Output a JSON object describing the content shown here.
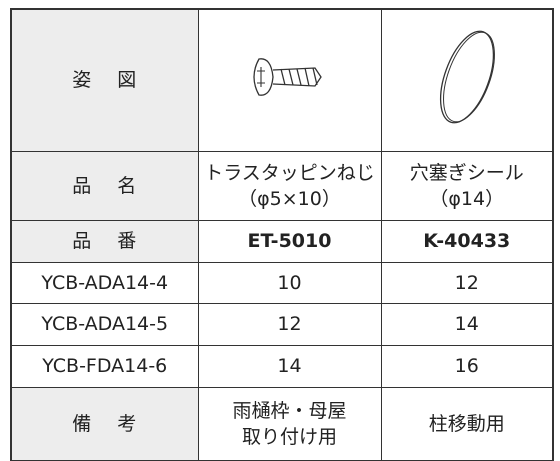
{
  "table": {
    "rows": [
      {
        "label": "姿 図"
      },
      {
        "label": "品 名",
        "cells": [
          [
            "トラスタッピンねじ",
            "（φ5×10）"
          ],
          [
            "穴塞ぎシール",
            "（φ14）"
          ]
        ]
      },
      {
        "label": "品 番",
        "cells": [
          "ET-5010",
          "K-40433"
        ]
      },
      {
        "label": "YCB-ADA14-4",
        "cells": [
          10,
          12
        ]
      },
      {
        "label": "YCB-ADA14-5",
        "cells": [
          12,
          14
        ]
      },
      {
        "label": "YCB-FDA14-6",
        "cells": [
          14,
          16
        ]
      },
      {
        "label": "備 考",
        "cells": [
          [
            "雨樋枠・母屋",
            "取り付け用"
          ],
          "柱移動用"
        ]
      }
    ]
  }
}
